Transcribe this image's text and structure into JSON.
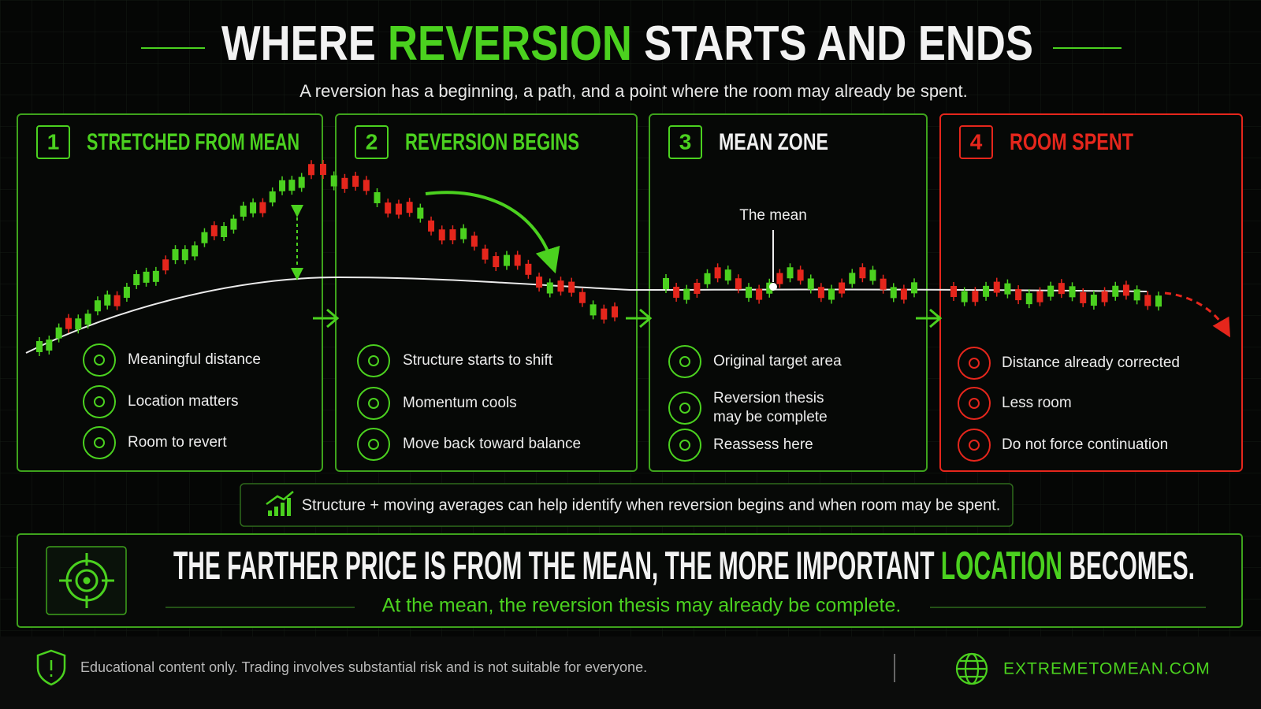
{
  "title": {
    "parts": [
      "WHERE",
      "REVERSION",
      "STARTS AND ENDS"
    ]
  },
  "subtitle": "A reversion has a beginning, a path, and a point where the room may already be spent.",
  "panels": [
    {
      "number": "1",
      "heading": "STRETCHED FROM MEAN",
      "items": [
        {
          "lines": [
            "Meaningful distance"
          ]
        },
        {
          "lines": [
            "Location matters"
          ]
        },
        {
          "lines": [
            "Room to revert"
          ]
        }
      ]
    },
    {
      "number": "2",
      "heading": "REVERSION BEGINS",
      "items": [
        {
          "lines": [
            "Structure starts to shift"
          ]
        },
        {
          "lines": [
            "Momentum cools"
          ]
        },
        {
          "lines": [
            "Move back toward balance"
          ]
        }
      ]
    },
    {
      "number": "3",
      "heading": "MEAN ZONE",
      "items": [
        {
          "lines": [
            "Original target area"
          ]
        },
        {
          "lines": [
            "Reversion thesis",
            "may be complete"
          ]
        },
        {
          "lines": [
            "Reassess here"
          ]
        }
      ]
    },
    {
      "number": "4",
      "heading": "ROOM SPENT",
      "items": [
        {
          "lines": [
            "Distance already corrected"
          ]
        },
        {
          "lines": [
            "Less room"
          ]
        },
        {
          "lines": [
            "Do not force continuation"
          ]
        }
      ]
    }
  ],
  "mean_label": "The mean",
  "note": "Structure + moving averages can help identify when reversion begins and when room may be spent.",
  "banner": {
    "headline_parts": [
      "THE FARTHER PRICE IS FROM THE MEAN, THE MORE IMPORTANT",
      "LOCATION",
      "BECOMES."
    ],
    "subline": "At the mean, the reversion thesis may already be complete."
  },
  "footer": {
    "disclaimer": "Educational content only. Trading involves substantial risk and is not suitable for everyone.",
    "site": "EXTREMETOMEAN.COM"
  }
}
